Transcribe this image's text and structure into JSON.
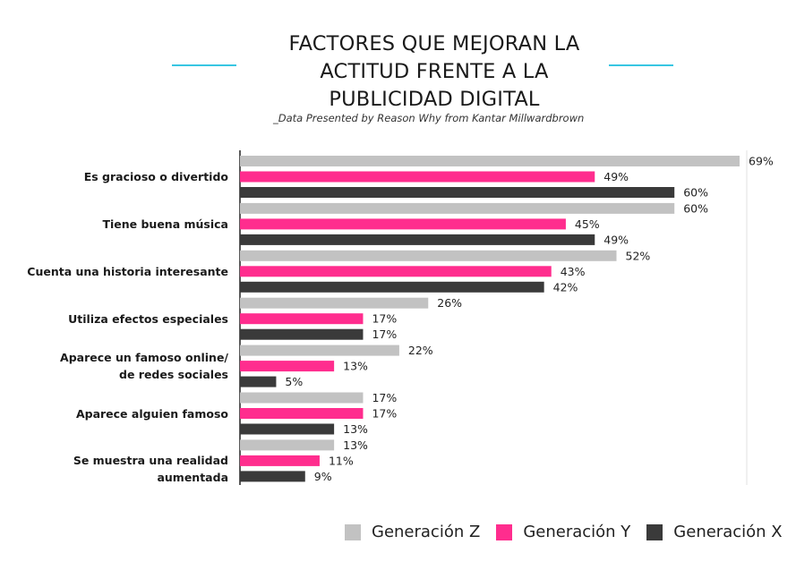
{
  "chart_data": {
    "type": "bar",
    "orientation": "horizontal",
    "title_lines": [
      "FACTORES QUE MEJORAN LA",
      "ACTITUD FRENTE A LA",
      "PUBLICIDAD DIGITAL"
    ],
    "subtitle": "_Data Presented by Reason Why from Kantar Millwardbrown",
    "categories": [
      [
        "Es gracioso o divertido"
      ],
      [
        "Tiene buena música"
      ],
      [
        "Cuenta una historia interesante"
      ],
      [
        "Utiliza efectos especiales"
      ],
      [
        "Aparece un famoso online/",
        "de redes sociales"
      ],
      [
        "Aparece alguien famoso"
      ],
      [
        "Se muestra una realidad aumentada"
      ]
    ],
    "series": [
      {
        "name": "Generación Z",
        "color": "#c2c2c2",
        "values": [
          69,
          60,
          52,
          26,
          22,
          17,
          13
        ]
      },
      {
        "name": "Generación Y",
        "color": "#ff2d8e",
        "values": [
          49,
          45,
          43,
          17,
          13,
          17,
          11
        ]
      },
      {
        "name": "Generación X",
        "color": "#3a3a3a",
        "values": [
          60,
          49,
          42,
          17,
          5,
          13,
          9
        ]
      }
    ],
    "value_suffix": "%",
    "xlim": [
      0,
      69
    ],
    "legend_position": "bottom-right"
  }
}
